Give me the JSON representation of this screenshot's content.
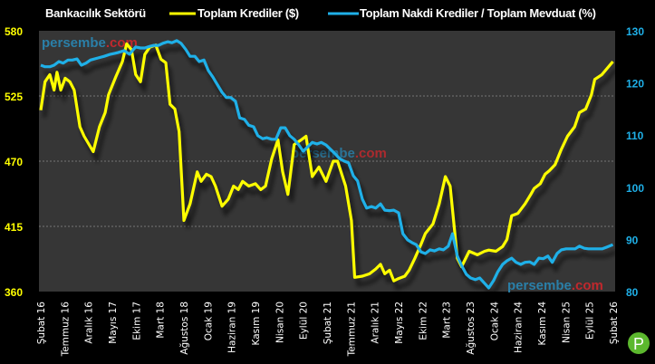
{
  "chart_data": {
    "type": "line",
    "title": "Bankacılık Sektörü",
    "x_unit": "months since Şubat 16",
    "x_range": [
      0,
      120
    ],
    "x_tick_labels": [
      "Şubat 16",
      "Temmuz 16",
      "Aralık 16",
      "Mayıs 17",
      "Ekim 17",
      "Mart 18",
      "Ağustos 18",
      "Ocak 19",
      "Haziran 19",
      "Kasım 19",
      "Nisan 20",
      "Eylül 20",
      "Şubat 21",
      "Temmuz 21",
      "Aralık 21",
      "Mayıs 22",
      "Ekim 22",
      "Mart 23",
      "Ağustos 23",
      "Ocak 24",
      "Haziran 24",
      "Kasım 24",
      "Nisan 25",
      "Eylül 25",
      "Şubat 26"
    ],
    "y_left": {
      "ylim": [
        360,
        580
      ],
      "ticks": [
        "360",
        "415",
        "470",
        "525",
        "580"
      ],
      "color": "#ffff00"
    },
    "y_right": {
      "ylim": [
        80,
        130
      ],
      "ticks": [
        "80",
        "90",
        "100",
        "110",
        "120",
        "130"
      ],
      "color": "#1fb0e8"
    },
    "grid": "horizontal dotted",
    "legend_placement": "top",
    "series": [
      {
        "name": "Toplam Krediler ($)",
        "axis": "left",
        "color": "#ffff00",
        "points": [
          [
            0,
            513
          ],
          [
            0.9,
            537
          ],
          [
            1.9,
            543
          ],
          [
            2.8,
            530
          ],
          [
            3.4,
            545
          ],
          [
            4.2,
            530
          ],
          [
            5.1,
            540
          ],
          [
            6.1,
            537
          ],
          [
            7,
            530
          ],
          [
            8.2,
            499
          ],
          [
            9.1,
            491
          ],
          [
            11,
            478
          ],
          [
            12.3,
            499
          ],
          [
            13.5,
            511
          ],
          [
            14.2,
            526
          ],
          [
            15.7,
            541
          ],
          [
            17.1,
            554
          ],
          [
            18,
            569
          ],
          [
            19,
            564
          ],
          [
            19.9,
            543
          ],
          [
            20.9,
            537
          ],
          [
            21.8,
            560
          ],
          [
            22.8,
            566
          ],
          [
            24.1,
            568
          ],
          [
            25.2,
            556
          ],
          [
            26.2,
            553
          ],
          [
            27.1,
            518
          ],
          [
            28.1,
            514
          ],
          [
            29,
            495
          ],
          [
            30,
            420
          ],
          [
            31.3,
            434
          ],
          [
            32.8,
            461
          ],
          [
            33.6,
            453
          ],
          [
            34.7,
            459
          ],
          [
            35.7,
            457
          ],
          [
            36.6,
            449
          ],
          [
            38,
            432
          ],
          [
            39.3,
            438
          ],
          [
            40.4,
            449
          ],
          [
            41.4,
            446
          ],
          [
            42.3,
            453
          ],
          [
            43.6,
            449
          ],
          [
            45,
            451
          ],
          [
            46.1,
            446
          ],
          [
            47.1,
            449
          ],
          [
            48.4,
            472
          ],
          [
            49.7,
            488
          ],
          [
            50.7,
            461
          ],
          [
            51.8,
            442
          ],
          [
            53.1,
            484
          ],
          [
            54.6,
            488
          ],
          [
            55.6,
            491
          ],
          [
            56.9,
            457
          ],
          [
            58.3,
            465
          ],
          [
            59.8,
            453
          ],
          [
            61.3,
            470
          ],
          [
            62.2,
            470
          ],
          [
            63.9,
            449
          ],
          [
            65.1,
            420
          ],
          [
            65.8,
            372
          ],
          [
            67.4,
            373
          ],
          [
            68.9,
            375
          ],
          [
            70.2,
            379
          ],
          [
            71.2,
            383
          ],
          [
            72.1,
            375
          ],
          [
            73.1,
            378
          ],
          [
            74,
            369
          ],
          [
            75,
            371
          ],
          [
            76.3,
            373
          ],
          [
            77.2,
            378
          ],
          [
            78.4,
            388
          ],
          [
            79.7,
            400
          ],
          [
            80.6,
            409
          ],
          [
            82.2,
            417
          ],
          [
            83.5,
            434
          ],
          [
            84.8,
            457
          ],
          [
            85.8,
            449
          ],
          [
            87.3,
            388
          ],
          [
            88.2,
            381
          ],
          [
            89.8,
            394
          ],
          [
            91.5,
            391
          ],
          [
            93,
            394
          ],
          [
            93.9,
            395
          ],
          [
            95.4,
            394
          ],
          [
            96.8,
            398
          ],
          [
            97.7,
            404
          ],
          [
            98.7,
            424
          ],
          [
            100,
            426
          ],
          [
            101.5,
            434
          ],
          [
            102.7,
            442
          ],
          [
            103.4,
            447
          ],
          [
            104.7,
            451
          ],
          [
            105.7,
            459
          ],
          [
            106.6,
            462
          ],
          [
            107.8,
            467
          ],
          [
            109.1,
            480
          ],
          [
            110.4,
            491
          ],
          [
            111.9,
            499
          ],
          [
            112.9,
            511
          ],
          [
            114.2,
            514
          ],
          [
            115.4,
            526
          ],
          [
            116.1,
            539
          ],
          [
            117.6,
            543
          ],
          [
            119.9,
            554
          ]
        ]
      },
      {
        "name": "Toplam Nakdi Krediler / Toplam Mevduat (%)",
        "axis": "right",
        "color": "#1fb0e8",
        "points": [
          [
            0,
            123.4
          ],
          [
            0.9,
            123.1
          ],
          [
            1.9,
            123.1
          ],
          [
            2.8,
            123.4
          ],
          [
            3.8,
            124.1
          ],
          [
            4.7,
            123.8
          ],
          [
            5.7,
            124.4
          ],
          [
            6.6,
            124.4
          ],
          [
            7.6,
            124.6
          ],
          [
            8.5,
            123.4
          ],
          [
            9.5,
            123.8
          ],
          [
            10.4,
            124.4
          ],
          [
            12,
            124.8
          ],
          [
            13.3,
            125.1
          ],
          [
            14.6,
            125.5
          ],
          [
            16.1,
            125.8
          ],
          [
            17.5,
            126.2
          ],
          [
            18.6,
            125.5
          ],
          [
            19.4,
            126.4
          ],
          [
            19.9,
            126.9
          ],
          [
            20.9,
            126.7
          ],
          [
            21.8,
            126.7
          ],
          [
            22.8,
            127
          ],
          [
            23.7,
            127.2
          ],
          [
            24.7,
            127.2
          ],
          [
            25.6,
            127.6
          ],
          [
            26.6,
            127.9
          ],
          [
            27.5,
            127.7
          ],
          [
            28.5,
            128.1
          ],
          [
            29.4,
            127.6
          ],
          [
            30.4,
            126.4
          ],
          [
            31.3,
            125.1
          ],
          [
            32.3,
            125.1
          ],
          [
            33.2,
            124.1
          ],
          [
            34.2,
            124.4
          ],
          [
            35.1,
            122.4
          ],
          [
            36.1,
            121.1
          ],
          [
            36.6,
            120.3
          ],
          [
            38,
            118.2
          ],
          [
            38.9,
            117.2
          ],
          [
            39.8,
            117.2
          ],
          [
            40.8,
            116.5
          ],
          [
            41.7,
            113.3
          ],
          [
            42.7,
            113
          ],
          [
            43.6,
            111.9
          ],
          [
            44.6,
            111.6
          ],
          [
            45.5,
            109.9
          ],
          [
            46.5,
            109.3
          ],
          [
            47.4,
            109.5
          ],
          [
            48.4,
            109.2
          ],
          [
            49.3,
            109.2
          ],
          [
            50.3,
            111.4
          ],
          [
            51.2,
            111.4
          ],
          [
            52.2,
            109.9
          ],
          [
            53.1,
            109.2
          ],
          [
            54.1,
            108.1
          ],
          [
            55,
            106.9
          ],
          [
            56,
            107.8
          ],
          [
            56.9,
            108.6
          ],
          [
            57.9,
            108.3
          ],
          [
            58.8,
            108.6
          ],
          [
            59.8,
            108.1
          ],
          [
            60.7,
            107.3
          ],
          [
            61.7,
            106.4
          ],
          [
            62.6,
            105.5
          ],
          [
            63.6,
            105
          ],
          [
            64.5,
            104.7
          ],
          [
            65.5,
            102.2
          ],
          [
            66.4,
            101.2
          ],
          [
            67.4,
            97.7
          ],
          [
            68.3,
            96
          ],
          [
            69.3,
            96.3
          ],
          [
            70.2,
            96
          ],
          [
            71.2,
            96.8
          ],
          [
            72.1,
            95.6
          ],
          [
            73.1,
            95.5
          ],
          [
            74,
            95.6
          ],
          [
            75,
            95.1
          ],
          [
            75.9,
            91.1
          ],
          [
            76.9,
            89.9
          ],
          [
            77.8,
            89.4
          ],
          [
            78.7,
            89
          ],
          [
            79.7,
            87.6
          ],
          [
            80.6,
            87.3
          ],
          [
            81.6,
            88
          ],
          [
            82.5,
            87.8
          ],
          [
            83.5,
            88.2
          ],
          [
            84.4,
            88
          ],
          [
            85.4,
            88.7
          ],
          [
            86.3,
            91.1
          ],
          [
            87.3,
            86.8
          ],
          [
            88.2,
            85
          ],
          [
            89.2,
            83.3
          ],
          [
            90.1,
            82.6
          ],
          [
            91.1,
            82.3
          ],
          [
            92,
            82.6
          ],
          [
            93,
            81.6
          ],
          [
            93.9,
            80.7
          ],
          [
            94.9,
            82.1
          ],
          [
            95.8,
            83.8
          ],
          [
            96.8,
            85.2
          ],
          [
            97.7,
            85.9
          ],
          [
            98.7,
            86.4
          ],
          [
            99.6,
            85.6
          ],
          [
            100.6,
            85.2
          ],
          [
            101.5,
            85.6
          ],
          [
            102.5,
            85.7
          ],
          [
            103.4,
            85.2
          ],
          [
            104.4,
            86.4
          ],
          [
            105.3,
            86.3
          ],
          [
            106.3,
            86.8
          ],
          [
            107.2,
            85.6
          ],
          [
            108.2,
            87.3
          ],
          [
            109.1,
            88
          ],
          [
            110.1,
            88.2
          ],
          [
            111,
            88.2
          ],
          [
            112,
            88.2
          ],
          [
            112.9,
            88.7
          ],
          [
            113.9,
            88.3
          ],
          [
            114.8,
            88.2
          ],
          [
            115.8,
            88.2
          ],
          [
            116.7,
            88.2
          ],
          [
            117.7,
            88.2
          ],
          [
            118.6,
            88.5
          ],
          [
            119.9,
            89
          ]
        ]
      }
    ]
  },
  "watermark": {
    "name": "persembe",
    "tld": ".com"
  },
  "logo": {
    "letter": "P"
  }
}
